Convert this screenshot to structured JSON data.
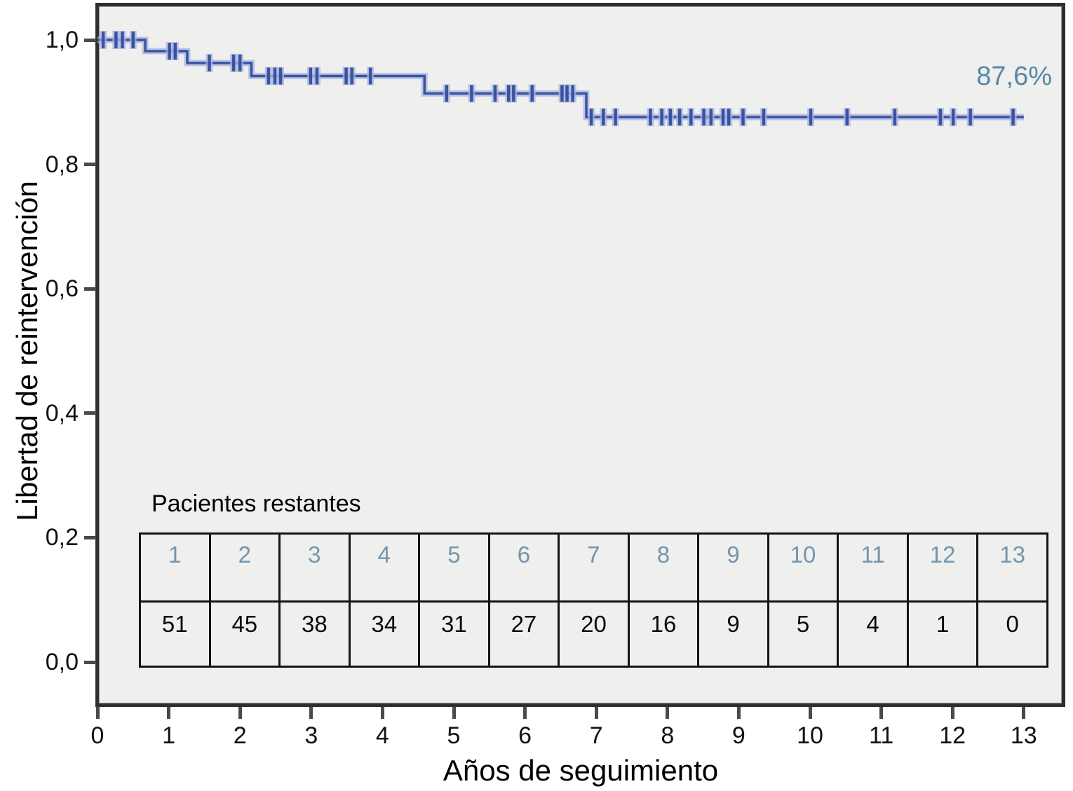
{
  "chart_data": {
    "type": "line",
    "subtype": "kaplan-meier-step",
    "title": "",
    "xlabel": "Años de seguimiento",
    "ylabel": "Libertad de reintervención",
    "xlim": [
      0,
      13.55
    ],
    "ylim": [
      -0.06,
      1.06
    ],
    "grid": false,
    "x_ticks": [
      "0",
      "1",
      "2",
      "3",
      "4",
      "5",
      "6",
      "7",
      "8",
      "9",
      "10",
      "11",
      "12",
      "13"
    ],
    "x_tick_values": [
      0,
      1,
      2,
      3,
      4,
      5,
      6,
      7,
      8,
      9,
      10,
      11,
      12,
      13
    ],
    "y_ticks": [
      "1,0",
      "0,8",
      "0,6",
      "0,4",
      "0,2",
      "0,0"
    ],
    "y_tick_values": [
      1.0,
      0.8,
      0.6,
      0.4,
      0.2,
      0.0
    ],
    "series": [
      {
        "name": "Libertad de reintervención",
        "points": [
          [
            0,
            1.0
          ],
          [
            0.67,
            1.0
          ],
          [
            0.67,
            0.982
          ],
          [
            1.26,
            0.982
          ],
          [
            1.26,
            0.963
          ],
          [
            2.16,
            0.963
          ],
          [
            2.16,
            0.942
          ],
          [
            4.59,
            0.942
          ],
          [
            4.59,
            0.914
          ],
          [
            6.86,
            0.914
          ],
          [
            6.86,
            0.876
          ],
          [
            13.0,
            0.876
          ]
        ],
        "censor_marks": [
          [
            0.08,
            1.0
          ],
          [
            0.26,
            1.0
          ],
          [
            0.35,
            1.0
          ],
          [
            0.5,
            1.0
          ],
          [
            1.01,
            0.982
          ],
          [
            1.09,
            0.982
          ],
          [
            1.57,
            0.963
          ],
          [
            1.91,
            0.963
          ],
          [
            2.0,
            0.963
          ],
          [
            2.4,
            0.942
          ],
          [
            2.49,
            0.942
          ],
          [
            2.57,
            0.942
          ],
          [
            2.99,
            0.942
          ],
          [
            3.08,
            0.942
          ],
          [
            3.49,
            0.942
          ],
          [
            3.57,
            0.942
          ],
          [
            3.83,
            0.942
          ],
          [
            4.9,
            0.914
          ],
          [
            5.25,
            0.914
          ],
          [
            5.58,
            0.914
          ],
          [
            5.77,
            0.914
          ],
          [
            5.84,
            0.914
          ],
          [
            6.1,
            0.914
          ],
          [
            6.52,
            0.914
          ],
          [
            6.59,
            0.914
          ],
          [
            6.67,
            0.914
          ],
          [
            6.93,
            0.876
          ],
          [
            7.1,
            0.876
          ],
          [
            7.27,
            0.876
          ],
          [
            7.76,
            0.876
          ],
          [
            7.92,
            0.876
          ],
          [
            8.04,
            0.876
          ],
          [
            8.17,
            0.876
          ],
          [
            8.33,
            0.876
          ],
          [
            8.51,
            0.876
          ],
          [
            8.61,
            0.876
          ],
          [
            8.78,
            0.876
          ],
          [
            8.86,
            0.876
          ],
          [
            9.06,
            0.876
          ],
          [
            9.35,
            0.876
          ],
          [
            10.01,
            0.876
          ],
          [
            10.52,
            0.876
          ],
          [
            11.19,
            0.876
          ],
          [
            11.83,
            0.876
          ],
          [
            12.01,
            0.876
          ],
          [
            12.25,
            0.876
          ],
          [
            12.85,
            0.876
          ]
        ],
        "final_value": 0.876
      }
    ],
    "annotation": {
      "text": "87,6%"
    },
    "risk_table": {
      "title": "Pacientes restantes",
      "columns": [
        "1",
        "2",
        "3",
        "4",
        "5",
        "6",
        "7",
        "8",
        "9",
        "10",
        "11",
        "12",
        "13"
      ],
      "values": [
        "51",
        "45",
        "38",
        "34",
        "31",
        "27",
        "20",
        "16",
        "9",
        "5",
        "4",
        "1",
        "0"
      ]
    },
    "colors": {
      "line": "#3a52a4",
      "line_halo": "#a9b6de",
      "annotation_text": "#5787a7",
      "table_header_text": "#7395ad",
      "plot_background": "#efefee",
      "frame_border": "#2f2f2f",
      "tick_mark": "#4a4a4a"
    }
  }
}
